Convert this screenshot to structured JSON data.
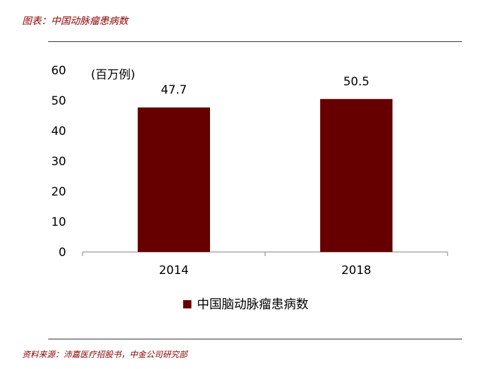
{
  "figure_title": "图表：中国动脉瘤患病数",
  "source": "资料来源：沛嘉医疗招股书，中金公司研究部",
  "chart_data": {
    "type": "bar",
    "categories": [
      "2014",
      "2018"
    ],
    "series": [
      {
        "name": "中国脑动脉瘤患病数",
        "values": [
          47.7,
          50.5
        ],
        "color": "#660000"
      }
    ],
    "data_labels": [
      "47.7",
      "50.5"
    ],
    "unit_label": "(百万例)",
    "ylim": [
      0,
      60
    ],
    "yticks": [
      0,
      10,
      20,
      30,
      40,
      50,
      60
    ],
    "grid": false,
    "legend_position": "bottom"
  }
}
